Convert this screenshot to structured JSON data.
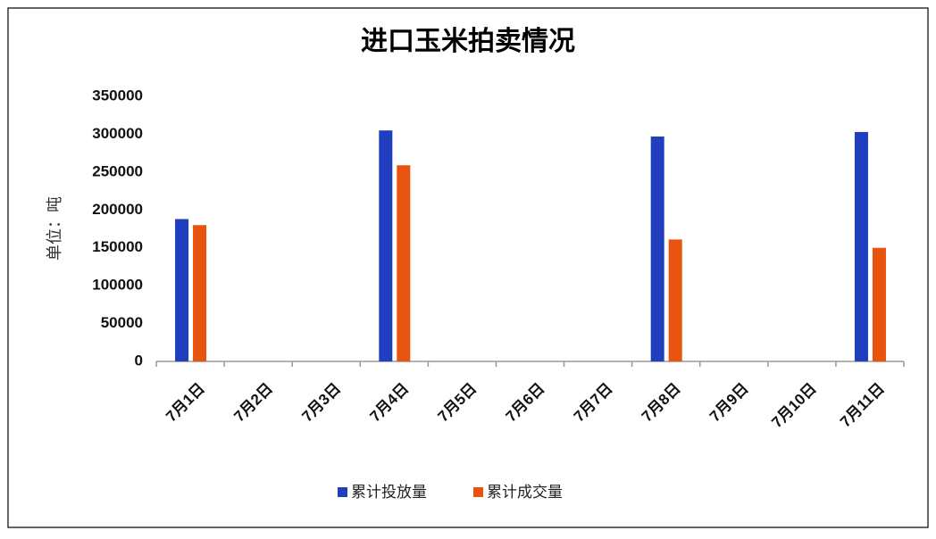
{
  "chart_data": {
    "type": "bar",
    "title": "进口玉米拍卖情况",
    "y_label": "单位：吨",
    "categories": [
      "7月1日",
      "7月2日",
      "7月3日",
      "7月4日",
      "7月5日",
      "7月6日",
      "7月7日",
      "7月8日",
      "7月9日",
      "7月10日",
      "7月11日"
    ],
    "series": [
      {
        "name": "累计投放量",
        "color": "#1f3fbf",
        "values": [
          188000,
          null,
          null,
          305000,
          null,
          null,
          null,
          297000,
          null,
          null,
          303000
        ]
      },
      {
        "name": "累计成交量",
        "color": "#e8540f",
        "values": [
          180000,
          null,
          null,
          259000,
          null,
          null,
          null,
          161000,
          null,
          null,
          150000
        ]
      }
    ],
    "ylim": [
      0,
      350000
    ],
    "yticks": [
      0,
      50000,
      100000,
      150000,
      200000,
      250000,
      300000,
      350000
    ],
    "grid": false
  }
}
